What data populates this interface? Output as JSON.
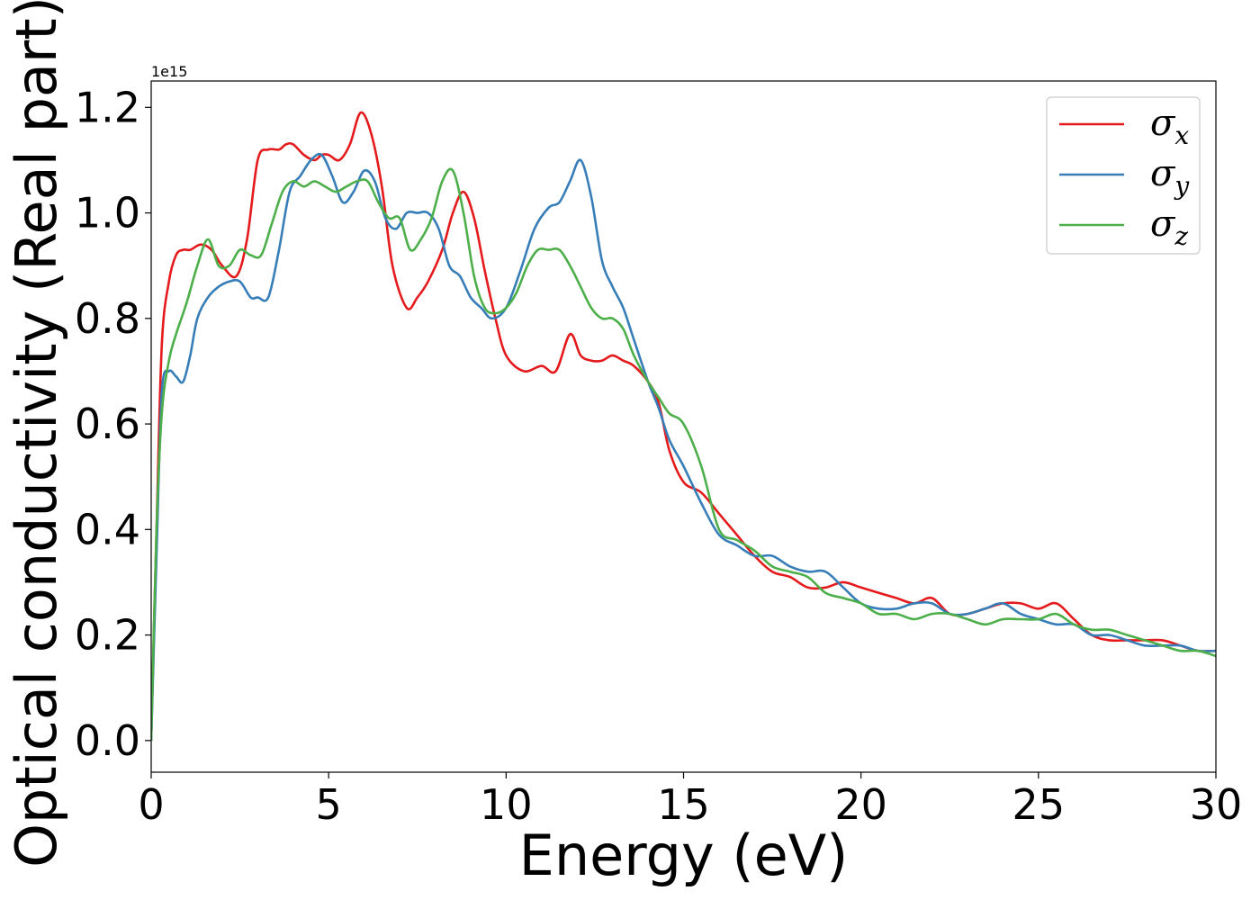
{
  "chart_data": {
    "type": "line",
    "xlabel": "Energy (eV)",
    "ylabel": "Optical conductivity (Real part)",
    "y_offset_text": "1e15",
    "xlim": [
      0,
      30
    ],
    "ylim": [
      -0.06,
      1.25
    ],
    "x_ticks": [
      0,
      5,
      10,
      15,
      20,
      25,
      30
    ],
    "x_tick_labels": [
      "0",
      "5",
      "10",
      "15",
      "20",
      "25",
      "30"
    ],
    "y_ticks": [
      0.0,
      0.2,
      0.4,
      0.6,
      0.8,
      1.0,
      1.2
    ],
    "y_tick_labels": [
      "0.0",
      "0.2",
      "0.4",
      "0.6",
      "0.8",
      "1.0",
      "1.2"
    ],
    "grid": false,
    "legend_position": "top-right",
    "series": [
      {
        "name": "σx",
        "symbol": "σ",
        "subscript": "x",
        "color": "#e41a1c",
        "x": [
          0,
          0.15,
          0.3,
          0.5,
          0.7,
          0.9,
          1.1,
          1.4,
          1.7,
          2.0,
          2.4,
          2.7,
          3.0,
          3.3,
          3.6,
          3.8,
          4.0,
          4.3,
          4.6,
          4.8,
          5.0,
          5.3,
          5.6,
          5.9,
          6.2,
          6.5,
          6.8,
          7.2,
          7.5,
          7.8,
          8.2,
          8.5,
          8.8,
          9.1,
          9.4,
          9.7,
          10.0,
          10.5,
          11.0,
          11.4,
          11.8,
          12.1,
          12.4,
          12.7,
          13.0,
          13.3,
          13.6,
          14.0,
          14.3,
          14.6,
          15.0,
          15.5,
          16.0,
          16.5,
          17.0,
          17.5,
          18.0,
          18.5,
          19.0,
          19.5,
          20.0,
          20.5,
          21.0,
          21.5,
          22.0,
          22.5,
          23.0,
          23.5,
          24.0,
          24.5,
          25.0,
          25.5,
          26.0,
          26.5,
          27.0,
          27.5,
          28.0,
          28.5,
          29.0,
          29.5,
          30.0
        ],
        "y": [
          0.0,
          0.4,
          0.75,
          0.87,
          0.92,
          0.93,
          0.93,
          0.94,
          0.93,
          0.9,
          0.88,
          0.95,
          1.1,
          1.12,
          1.12,
          1.13,
          1.13,
          1.11,
          1.1,
          1.11,
          1.11,
          1.1,
          1.13,
          1.19,
          1.15,
          1.05,
          0.9,
          0.82,
          0.84,
          0.87,
          0.93,
          1.0,
          1.04,
          0.99,
          0.89,
          0.8,
          0.73,
          0.7,
          0.71,
          0.7,
          0.77,
          0.73,
          0.72,
          0.72,
          0.73,
          0.72,
          0.71,
          0.68,
          0.64,
          0.55,
          0.49,
          0.47,
          0.43,
          0.39,
          0.35,
          0.32,
          0.31,
          0.29,
          0.29,
          0.3,
          0.29,
          0.28,
          0.27,
          0.26,
          0.27,
          0.24,
          0.24,
          0.25,
          0.26,
          0.26,
          0.25,
          0.26,
          0.23,
          0.2,
          0.19,
          0.19,
          0.19,
          0.19,
          0.18,
          0.17,
          0.17
        ]
      },
      {
        "name": "σy",
        "symbol": "σ",
        "subscript": "y",
        "color": "#377eb8",
        "x": [
          0,
          0.15,
          0.3,
          0.5,
          0.7,
          0.9,
          1.1,
          1.3,
          1.6,
          1.9,
          2.2,
          2.5,
          2.8,
          3.0,
          3.3,
          3.6,
          3.9,
          4.2,
          4.5,
          4.8,
          5.1,
          5.4,
          5.7,
          6.0,
          6.3,
          6.6,
          6.9,
          7.2,
          7.5,
          7.8,
          8.1,
          8.4,
          8.7,
          9.0,
          9.3,
          9.6,
          10.0,
          10.4,
          10.8,
          11.2,
          11.5,
          11.8,
          12.1,
          12.4,
          12.7,
          13.0,
          13.3,
          13.6,
          14.0,
          14.3,
          14.6,
          15.0,
          15.5,
          16.0,
          16.5,
          17.0,
          17.5,
          18.0,
          18.5,
          19.0,
          19.5,
          20.0,
          20.5,
          21.0,
          21.5,
          22.0,
          22.5,
          23.0,
          23.5,
          24.0,
          24.5,
          25.0,
          25.5,
          26.0,
          26.5,
          27.0,
          27.5,
          28.0,
          28.5,
          29.0,
          29.5,
          30.0
        ],
        "y": [
          0.0,
          0.35,
          0.66,
          0.7,
          0.69,
          0.68,
          0.73,
          0.8,
          0.84,
          0.86,
          0.87,
          0.87,
          0.84,
          0.84,
          0.84,
          0.93,
          1.04,
          1.07,
          1.1,
          1.11,
          1.07,
          1.02,
          1.04,
          1.08,
          1.06,
          0.99,
          0.97,
          1.0,
          1.0,
          1.0,
          0.97,
          0.9,
          0.88,
          0.84,
          0.82,
          0.8,
          0.82,
          0.89,
          0.97,
          1.01,
          1.02,
          1.06,
          1.1,
          1.03,
          0.91,
          0.86,
          0.82,
          0.76,
          0.68,
          0.63,
          0.57,
          0.52,
          0.45,
          0.39,
          0.37,
          0.35,
          0.35,
          0.33,
          0.32,
          0.32,
          0.29,
          0.26,
          0.25,
          0.25,
          0.26,
          0.26,
          0.24,
          0.24,
          0.25,
          0.26,
          0.24,
          0.23,
          0.22,
          0.22,
          0.2,
          0.2,
          0.19,
          0.18,
          0.18,
          0.18,
          0.17,
          0.17
        ]
      },
      {
        "name": "σz",
        "symbol": "σ",
        "subscript": "z",
        "color": "#4daf4a",
        "x": [
          0,
          0.15,
          0.3,
          0.5,
          0.7,
          1.0,
          1.3,
          1.6,
          1.9,
          2.2,
          2.5,
          2.8,
          3.1,
          3.4,
          3.7,
          4.0,
          4.3,
          4.6,
          4.9,
          5.2,
          5.5,
          5.8,
          6.1,
          6.4,
          6.7,
          7.0,
          7.3,
          7.6,
          7.9,
          8.2,
          8.5,
          8.8,
          9.1,
          9.4,
          9.7,
          10.0,
          10.3,
          10.6,
          10.9,
          11.2,
          11.5,
          11.8,
          12.1,
          12.4,
          12.7,
          13.0,
          13.3,
          13.6,
          14.0,
          14.3,
          14.6,
          15.0,
          15.5,
          16.0,
          16.5,
          17.0,
          17.5,
          18.0,
          18.5,
          19.0,
          19.5,
          20.0,
          20.5,
          21.0,
          21.5,
          22.0,
          22.5,
          23.0,
          23.5,
          24.0,
          24.5,
          25.0,
          25.5,
          26.0,
          26.5,
          27.0,
          27.5,
          28.0,
          28.5,
          29.0,
          29.5,
          30.0
        ],
        "y": [
          0.0,
          0.4,
          0.62,
          0.72,
          0.77,
          0.83,
          0.9,
          0.95,
          0.9,
          0.9,
          0.93,
          0.92,
          0.92,
          0.98,
          1.04,
          1.06,
          1.05,
          1.06,
          1.05,
          1.04,
          1.05,
          1.06,
          1.06,
          1.02,
          0.99,
          0.99,
          0.93,
          0.95,
          0.99,
          1.06,
          1.08,
          1.0,
          0.88,
          0.82,
          0.81,
          0.82,
          0.85,
          0.9,
          0.93,
          0.93,
          0.93,
          0.9,
          0.86,
          0.82,
          0.8,
          0.8,
          0.78,
          0.73,
          0.68,
          0.65,
          0.62,
          0.6,
          0.52,
          0.4,
          0.38,
          0.36,
          0.33,
          0.32,
          0.31,
          0.28,
          0.27,
          0.26,
          0.24,
          0.24,
          0.23,
          0.24,
          0.24,
          0.23,
          0.22,
          0.23,
          0.23,
          0.23,
          0.24,
          0.22,
          0.21,
          0.21,
          0.2,
          0.19,
          0.18,
          0.17,
          0.17,
          0.16
        ]
      }
    ]
  }
}
